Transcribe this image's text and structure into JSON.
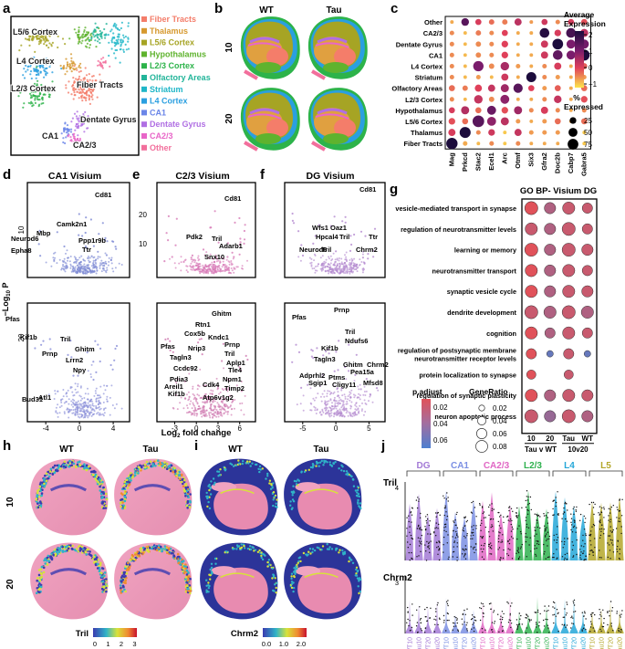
{
  "panels": {
    "a": {
      "letter": "a",
      "umap_labels": [
        "L5/6 Cortex",
        "L4 Cortex",
        "L2/3 Cortex",
        "Fiber Tracts",
        "Dentate Gyrus",
        "CA1",
        "CA2/3"
      ],
      "legend": [
        {
          "name": "Fiber Tracts",
          "color": "#f47d6a"
        },
        {
          "name": "Thalamus",
          "color": "#d6992f"
        },
        {
          "name": "L5/6 Cortex",
          "color": "#a6a424"
        },
        {
          "name": "Hypothalamus",
          "color": "#5fb32e"
        },
        {
          "name": "L2/3 Cortex",
          "color": "#2db34a"
        },
        {
          "name": "Olfactory Areas",
          "color": "#23b59a"
        },
        {
          "name": "Striatum",
          "color": "#1fb6c8"
        },
        {
          "name": "L4 Cortex",
          "color": "#2a9fe0"
        },
        {
          "name": "CA1",
          "color": "#6b86e8"
        },
        {
          "name": "Dentate Gyrus",
          "color": "#b06fe3"
        },
        {
          "name": "CA2/3",
          "color": "#e866c8"
        },
        {
          "name": "Other",
          "color": "#f26f9c"
        }
      ]
    },
    "b": {
      "letter": "b",
      "columns": [
        "WT",
        "Tau"
      ],
      "rows": [
        "10",
        "20"
      ]
    },
    "c": {
      "letter": "c",
      "colorbar_title": [
        "Average",
        "Expression"
      ],
      "colorbar_ticks": [
        "2",
        "1",
        "0",
        "−1"
      ],
      "size_title": [
        "%",
        "Expressed"
      ],
      "size_ticks": [
        "25",
        "50",
        "75"
      ],
      "colors": {
        "high": "#1c0c3c",
        "mid": "#d23a64",
        "low": "#fde64b"
      }
    },
    "d": {
      "letter": "d",
      "title": "CA1 Visium",
      "top_genes": [
        "Cd81",
        "Camk2n1",
        "Mbp",
        "Neurod6",
        "Ppp1r9b",
        "Epha8",
        "Ttr"
      ],
      "bottom_genes": [
        "Pfas",
        "Kif1b",
        "Tril",
        "Ghitm",
        "Prnp",
        "Lrrn2",
        "Npy",
        "Bud31",
        "Atl1"
      ],
      "xticks": [
        "-4",
        "0",
        "4"
      ]
    },
    "e": {
      "letter": "e",
      "title": "C2/3 Visium",
      "top_genes": [
        "Cd81",
        "Pdk2",
        "Tril",
        "Adarb1",
        "Snx10"
      ],
      "bottom_genes": [
        "Ghitm",
        "Rtn1",
        "Cox5b",
        "Kndc1",
        "Prnp",
        "Pfas",
        "Nrip3",
        "Tril",
        "Tagln3",
        "Aplp1",
        "Ccdc92",
        "Tle4",
        "Pdia3",
        "Npm1",
        "Areil1",
        "Cdk4",
        "Timp2",
        "Kif1b",
        "Atp6v1g2"
      ],
      "xticks": [
        "-3",
        "0",
        "3",
        "6"
      ],
      "yticks": [
        "20",
        "10"
      ]
    },
    "f": {
      "letter": "f",
      "title": "DG Visium",
      "top_genes": [
        "Cd81",
        "Wfs1",
        "Oaz1",
        "Hpcal4",
        "Ttr",
        "Tril",
        "Neurod6",
        "Tril",
        "Chrm2"
      ],
      "bottom_genes": [
        "Prnp",
        "Pfas",
        "Tril",
        "Ndufs6",
        "Kif1b",
        "Tagln3",
        "Ghitm",
        "Chrm2",
        "Pea15a",
        "Adprhl2",
        "Sgip1",
        "Ptms",
        "Cligy11",
        "Mfsd8"
      ],
      "xticks": [
        "-5",
        "0",
        "5"
      ]
    },
    "g": {
      "letter": "g",
      "title": "GO BP- Visium DG",
      "terms": [
        "vesicle-mediated transport in synapse",
        "regulation of neurotransmitter levels",
        "learning or memory",
        "neurotransmitter transport",
        "synaptic vesicle cycle",
        "dendrite development",
        "cognition",
        "regulation of postsynaptic membrane neurotransmitter receptor levels",
        "protein localization to synapse",
        "regulation of synaptic plasticity",
        "neuron apoptotic process"
      ],
      "col_labels": [
        "10",
        "20",
        "Tau",
        "WT"
      ],
      "group_labels": [
        "Tau v WT",
        "10v20"
      ],
      "padj_title": "p.adjust",
      "padj_ticks": [
        "0.02",
        "0.04",
        "0.06"
      ],
      "generatio_title": "GeneRatio",
      "generatio_ticks": [
        "0.02",
        "0.04",
        "0.06",
        "0.08"
      ]
    },
    "axes": {
      "ylabel_left": "-Log10 P",
      "xlabel_bottom": "Log2 fold change",
      "ytick_10": "10",
      "ytick_20": "20"
    },
    "h": {
      "letter": "h",
      "columns": [
        "WT",
        "Tau"
      ],
      "rows": [
        "10",
        "20"
      ],
      "colorbar_title": "Tril",
      "colorbar_ticks": [
        "0",
        "1",
        "2",
        "3"
      ]
    },
    "i": {
      "letter": "i",
      "columns": [
        "WT",
        "Tau"
      ],
      "colorbar_title": "Chrm2",
      "colorbar_ticks": [
        "0.0",
        "1.0",
        "2.0"
      ]
    },
    "j": {
      "letter": "j",
      "groups": [
        {
          "name": "DG",
          "color": "#a37ad6"
        },
        {
          "name": "CA1",
          "color": "#7b8fe3"
        },
        {
          "name": "CA2/3",
          "color": "#e067c4"
        },
        {
          "name": "L2/3",
          "color": "#2fb14f"
        },
        {
          "name": "L4",
          "color": "#24a7d8"
        },
        {
          "name": "L5",
          "color": "#b4a72a"
        }
      ],
      "genes": [
        {
          "name": "Tril",
          "ymax": "4"
        },
        {
          "name": "Chrm2",
          "ymax": "3"
        }
      ],
      "sample_labels": [
        "WT10",
        "Tau10",
        "WT20",
        "Tau20"
      ]
    }
  },
  "chart_data": [
    {
      "type": "scatter",
      "panel": "c",
      "x_categories": [
        "Mag",
        "Prkcd",
        "Stac2",
        "Ecel1",
        "Arc",
        "Otmf",
        "Six3",
        "Gfra2",
        "Doc2b",
        "Cabp7",
        "Gabra5"
      ],
      "y_categories": [
        "Fiber Tracts",
        "Thalamus",
        "L5/6 Cortex",
        "Hypothalamus",
        "L2/3 Cortex",
        "Olfactory Areas",
        "Striatum",
        "L4 Cortex",
        "CA1",
        "Dentate Gyrus",
        "CA2/3",
        "Other"
      ],
      "cells": [
        [
          2.3,
          85
        ],
        [
          -0.6,
          10
        ],
        [
          -0.7,
          5
        ],
        [
          -0.4,
          10
        ],
        [
          -0.8,
          5
        ],
        [
          -0.4,
          10
        ],
        [
          -0.6,
          5
        ],
        [
          -0.6,
          5
        ],
        [
          -0.6,
          5
        ],
        [
          -0.7,
          5
        ],
        [
          -0.8,
          5
        ],
        [
          0.2,
          30
        ],
        [
          2.3,
          80
        ],
        [
          -0.4,
          10
        ],
        [
          0.3,
          25
        ],
        [
          -0.8,
          5
        ],
        [
          0.4,
          30
        ],
        [
          -0.5,
          10
        ],
        [
          -0.5,
          10
        ],
        [
          -0.5,
          10
        ],
        [
          -0.6,
          5
        ],
        [
          -0.8,
          5
        ],
        [
          0.0,
          25
        ],
        [
          -0.2,
          20
        ],
        [
          1.6,
          90
        ],
        [
          1.0,
          50
        ],
        [
          0.5,
          40
        ],
        [
          -0.5,
          10
        ],
        [
          -0.6,
          5
        ],
        [
          -0.5,
          10
        ],
        [
          -0.2,
          20
        ],
        [
          -0.6,
          5
        ],
        [
          -0.2,
          20
        ],
        [
          0.2,
          20
        ],
        [
          0.6,
          40
        ],
        [
          -0.2,
          20
        ],
        [
          1.4,
          50
        ],
        [
          0.0,
          25
        ],
        [
          0.8,
          40
        ],
        [
          -0.4,
          10
        ],
        [
          0.2,
          30
        ],
        [
          -0.4,
          10
        ],
        [
          -0.6,
          5
        ],
        [
          -0.4,
          10
        ],
        [
          -0.4,
          10
        ],
        [
          -0.7,
          5
        ],
        [
          0.4,
          45
        ],
        [
          -0.4,
          15
        ],
        [
          1.0,
          50
        ],
        [
          -0.6,
          5
        ],
        [
          -0.6,
          5
        ],
        [
          -0.4,
          10
        ],
        [
          0.4,
          35
        ],
        [
          -0.6,
          5
        ],
        [
          0.0,
          25
        ],
        [
          -0.2,
          20
        ],
        [
          -0.3,
          15
        ],
        [
          0.1,
          30
        ],
        [
          0.4,
          30
        ],
        [
          0.8,
          40
        ],
        [
          1.6,
          55
        ],
        [
          0.1,
          20
        ],
        [
          -0.5,
          10
        ],
        [
          -0.1,
          20
        ],
        [
          -0.6,
          5
        ],
        [
          -0.2,
          20
        ],
        [
          -0.4,
          10
        ],
        [
          -0.7,
          5
        ],
        [
          -0.5,
          10
        ],
        [
          -0.7,
          5
        ],
        [
          0.3,
          30
        ],
        [
          -0.6,
          5
        ],
        [
          2.3,
          65
        ],
        [
          -0.4,
          10
        ],
        [
          -0.5,
          10
        ],
        [
          -0.6,
          5
        ],
        [
          -0.5,
          10
        ],
        [
          -0.4,
          10
        ],
        [
          -0.7,
          5
        ],
        [
          1.2,
          70
        ],
        [
          -0.4,
          15
        ],
        [
          0.7,
          45
        ],
        [
          -0.5,
          10
        ],
        [
          -0.6,
          5
        ],
        [
          -0.4,
          10
        ],
        [
          0.2,
          30
        ],
        [
          -0.6,
          5
        ],
        [
          -0.1,
          20
        ],
        [
          -0.4,
          10
        ],
        [
          -0.7,
          5
        ],
        [
          -0.4,
          15
        ],
        [
          -0.4,
          10
        ],
        [
          0.1,
          25
        ],
        [
          -0.6,
          5
        ],
        [
          -0.6,
          5
        ],
        [
          0.3,
          30
        ],
        [
          1.5,
          60
        ],
        [
          1.2,
          50
        ],
        [
          2.3,
          80
        ],
        [
          -0.4,
          10
        ],
        [
          -0.7,
          5
        ],
        [
          -0.4,
          15
        ],
        [
          -0.4,
          10
        ],
        [
          0.1,
          25
        ],
        [
          -0.6,
          5
        ],
        [
          -0.6,
          5
        ],
        [
          0.3,
          30
        ],
        [
          2.3,
          75
        ],
        [
          1.2,
          50
        ],
        [
          1.3,
          55
        ],
        [
          -0.4,
          10
        ],
        [
          -0.7,
          5
        ],
        [
          -0.3,
          15
        ],
        [
          -0.4,
          10
        ],
        [
          0.1,
          20
        ],
        [
          -0.6,
          5
        ],
        [
          -0.6,
          5
        ],
        [
          2.2,
          60
        ],
        [
          0.2,
          25
        ],
        [
          1.8,
          60
        ],
        [
          0.5,
          40
        ],
        [
          -0.6,
          5
        ],
        [
          1.6,
          35
        ],
        [
          0.2,
          20
        ],
        [
          -0.2,
          15
        ],
        [
          -0.3,
          15
        ],
        [
          0.5,
          30
        ],
        [
          -0.5,
          5
        ],
        [
          0.3,
          20
        ],
        [
          -0.4,
          10
        ],
        [
          0.2,
          20
        ],
        [
          0.0,
          20
        ]
      ],
      "xlabel": "",
      "ylabel": ""
    },
    {
      "type": "scatter",
      "panel": "g",
      "x_categories": [
        "10",
        "20",
        "Tau",
        "WT"
      ],
      "y_categories": [
        "vesicle-mediated transport in synapse",
        "regulation of neurotransmitter levels",
        "learning or memory",
        "neurotransmitter transport",
        "synaptic vesicle cycle",
        "dendrite development",
        "cognition",
        "regulation of postsynaptic membrane neurotransmitter receptor levels",
        "protein localization to synapse",
        "regulation of synaptic plasticity",
        "neuron apoptotic process"
      ],
      "cells": [
        [
          0.08,
          0.01
        ],
        [
          0.06,
          0.03
        ],
        [
          0.07,
          0.02
        ],
        [
          0.05,
          0.02
        ],
        [
          0.07,
          0.02
        ],
        [
          0.06,
          0.03
        ],
        [
          0.08,
          0.02
        ],
        [
          0.05,
          0.02
        ],
        [
          0.08,
          0.01
        ],
        [
          0.06,
          0.03
        ],
        [
          0.08,
          0.02
        ],
        [
          0.06,
          0.02
        ],
        [
          0.07,
          0.01
        ],
        [
          0.06,
          0.03
        ],
        [
          0.07,
          0.02
        ],
        [
          0.05,
          0.02
        ],
        [
          0.07,
          0.01
        ],
        [
          0.06,
          0.03
        ],
        [
          0.07,
          0.02
        ],
        [
          0.06,
          0.02
        ],
        [
          0.08,
          0.02
        ],
        [
          0.07,
          0.03
        ],
        [
          0.08,
          0.02
        ],
        [
          0.07,
          0.03
        ],
        [
          0.07,
          0.01
        ],
        [
          0.05,
          0.03
        ],
        [
          0.07,
          0.02
        ],
        [
          0.05,
          0.02
        ],
        [
          0.05,
          0.01
        ],
        [
          0.02,
          0.06
        ],
        [
          0.05,
          0.02
        ],
        [
          0.02,
          0.06
        ],
        [
          0.04,
          0.01
        ],
        null,
        [
          0.04,
          0.02
        ],
        null,
        [
          0.07,
          0.01
        ],
        [
          0.06,
          0.03
        ],
        [
          0.07,
          0.02
        ],
        [
          0.06,
          0.02
        ],
        [
          0.08,
          0.02
        ],
        [
          0.06,
          0.04
        ],
        [
          0.08,
          0.02
        ],
        [
          0.06,
          0.03
        ]
      ],
      "xlabel": "",
      "ylabel": ""
    }
  ]
}
